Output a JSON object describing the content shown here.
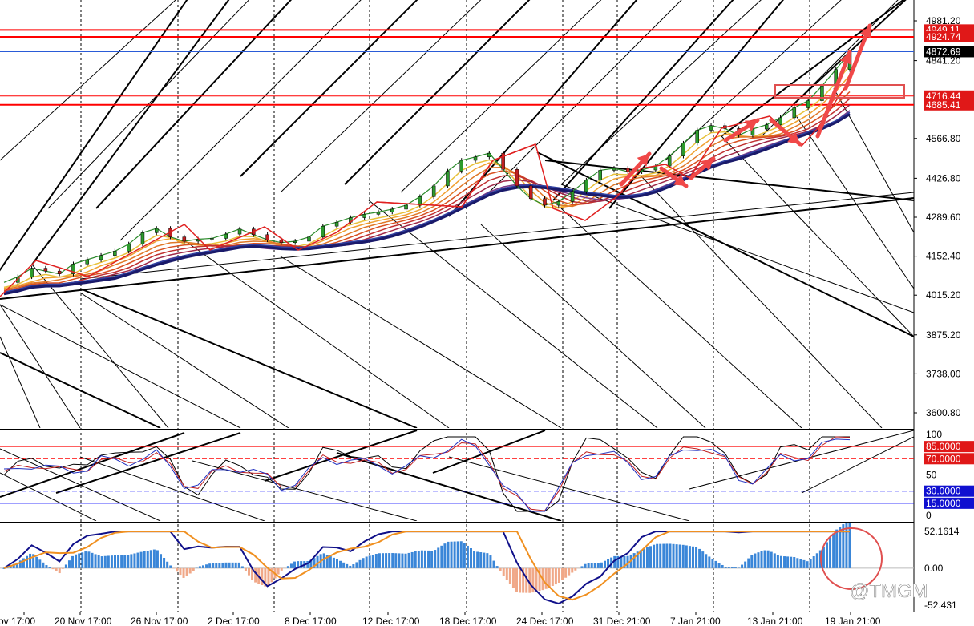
{
  "chart_data": {
    "type": "line",
    "symbol_watermark": "@TMGM",
    "main_panel": {
      "price_axis_ticks": [
        "4981.20",
        "4841.20",
        "4566.80",
        "4426.80",
        "4289.60",
        "4152.40",
        "4015.20",
        "3875.20",
        "3738.00",
        "3600.80"
      ],
      "price_levels": [
        {
          "label": "4949.11",
          "value": 4949.11,
          "color": "#ff0000"
        },
        {
          "label": "4924.74",
          "value": 4924.74,
          "color": "#ff0000"
        },
        {
          "label": "4872.69",
          "value": 4872.69,
          "color": "#000000"
        },
        {
          "label": "4716.44",
          "value": 4716.44,
          "color": "#ff0000"
        },
        {
          "label": "4685.41",
          "value": 4685.41,
          "color": "#ff0000"
        }
      ],
      "close_series": [
        4060,
        4080,
        4110,
        4100,
        4090,
        4125,
        4140,
        4155,
        4170,
        4195,
        4235,
        4250,
        4220,
        4205,
        4212,
        4215,
        4230,
        4248,
        4228,
        4210,
        4200,
        4205,
        4220,
        4258,
        4272,
        4288,
        4300,
        4308,
        4318,
        4332,
        4362,
        4400,
        4452,
        4490,
        4502,
        4515,
        4458,
        4400,
        4355,
        4332,
        4345,
        4380,
        4420,
        4455,
        4462,
        4450,
        4456,
        4470,
        4505,
        4550,
        4596,
        4612,
        4602,
        4578,
        4600,
        4615,
        4640,
        4675,
        4700,
        4752,
        4810,
        4870
      ]
    },
    "rsi_panel": {
      "axis_ticks": [
        "100",
        "50",
        "0"
      ],
      "levels": [
        {
          "label": "85.0000",
          "value": 85,
          "color": "#ff0000"
        },
        {
          "label": "70.0000",
          "value": 70,
          "color": "#ff0000"
        },
        {
          "label": "30.0000",
          "value": 30,
          "color": "#0000ff"
        },
        {
          "label": "15.0000",
          "value": 15,
          "color": "#0000ff"
        }
      ]
    },
    "macd_panel": {
      "axis_ticks": [
        "52.1614",
        "0.00",
        "-52.431"
      ]
    },
    "x_axis_labels": [
      "ov 17:00",
      "20 Nov 17:00",
      "26 Nov 17:00",
      "2 Dec 17:00",
      "8 Dec 17:00",
      "12 Dec 17:00",
      "18 Dec 17:00",
      "24 Dec 17:00",
      "31 Dec 21:00",
      "7 Jan 21:00",
      "13 Jan 21:00",
      "19 Jan 21:00"
    ]
  }
}
